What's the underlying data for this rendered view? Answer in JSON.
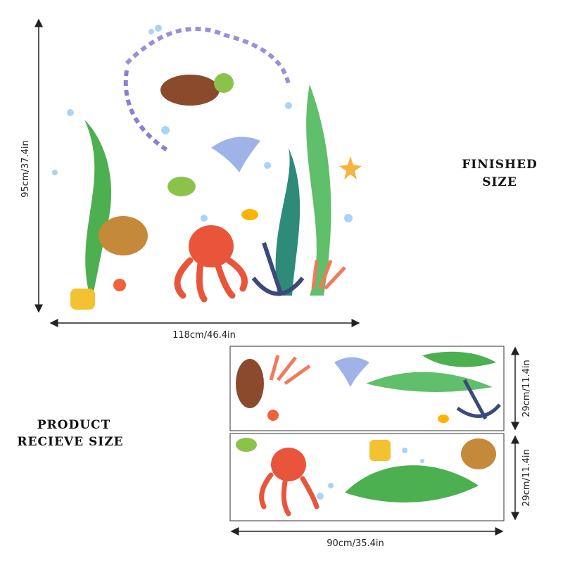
{
  "finished": {
    "height_label": "95cm/37.4in",
    "width_label": "118cm/46.4in",
    "title_lines": [
      "FINISHED",
      "SIZE"
    ]
  },
  "received": {
    "title_lines": [
      "PRODUCT",
      "RECIEVE SIZE"
    ],
    "sheet_height_labels": [
      "29cm/11.4in",
      "29cm/11.4in"
    ],
    "width_label": "90cm/35.4in"
  }
}
